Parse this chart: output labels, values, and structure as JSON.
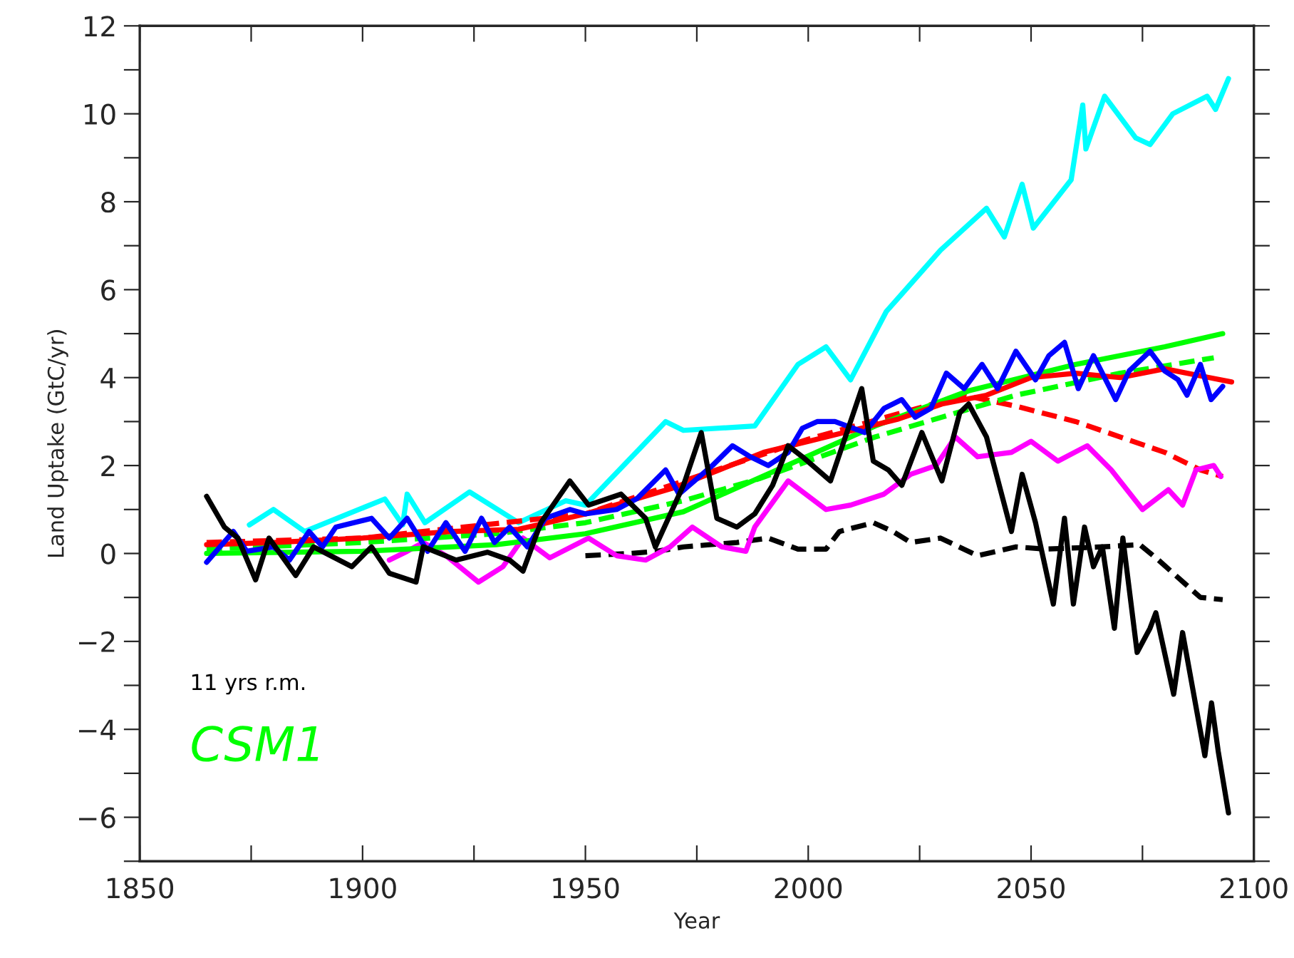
{
  "chart_data": {
    "type": "line",
    "xlabel": "Year",
    "ylabel": "Land Uptake (GtC/yr)",
    "annotations": [
      "11 yrs r.m.",
      "CSM1"
    ],
    "xlim": [
      1850,
      2100
    ],
    "xticks": [
      1850,
      {
        "value": 1875,
        "label": null
      },
      1900,
      {
        "value": 1925,
        "label": null
      },
      1950,
      {
        "value": 1975,
        "label": null
      },
      2000,
      {
        "value": 2025,
        "label": null
      },
      2050,
      {
        "value": 2075,
        "label": null
      },
      2100
    ],
    "ylim": [
      -7,
      12
    ],
    "yticks": [
      {
        "value": -7,
        "label": null
      },
      -6,
      {
        "value": -5,
        "label": null
      },
      -4,
      {
        "value": -3,
        "label": null
      },
      -2,
      {
        "value": -1,
        "label": null
      },
      0,
      {
        "value": 1,
        "label": null
      },
      2,
      {
        "value": 3,
        "label": null
      },
      4,
      {
        "value": 5,
        "label": null
      },
      6,
      {
        "value": 7,
        "label": null
      },
      8,
      {
        "value": 9,
        "label": null
      },
      10,
      {
        "value": 11,
        "label": null
      },
      12
    ],
    "grid": false,
    "legend": false,
    "series": [
      {
        "color": "#00ffff",
        "line_style": "solid",
        "x": [
          1874.6,
          1880,
          1887,
          1905,
          1909,
          1910,
          1914,
          1924,
          1935,
          1945.6,
          1950,
          1968,
          1972,
          1988,
          1997.7,
          2004,
          2009.5,
          2017.5,
          2029.7,
          2040,
          2044,
          2048,
          2050.5,
          2059,
          2061.6,
          2062.3,
          2066.5,
          2073.5,
          2076.7,
          2081.8,
          2089.5,
          2091.4,
          2094.3
        ],
        "values": [
          0.65,
          1.0,
          0.5,
          1.24,
          0.65,
          1.35,
          0.7,
          1.4,
          0.7,
          1.2,
          1.1,
          3.0,
          2.8,
          2.9,
          4.3,
          4.7,
          3.95,
          5.5,
          6.9,
          7.85,
          7.2,
          8.4,
          7.4,
          8.5,
          10.2,
          9.2,
          10.4,
          9.45,
          9.3,
          10.0,
          10.4,
          10.1,
          10.8
        ]
      },
      {
        "color": "#000000",
        "line_style": "dashed",
        "x": [
          1950,
          1960,
          1966,
          1972,
          1984,
          1991,
          1997.7,
          2004,
          2007,
          2014.6,
          2019,
          2023,
          2029.7,
          2038,
          2046.6,
          2053,
          2066,
          2074.4,
          2078.6,
          2083,
          2088,
          2093
        ],
        "values": [
          -0.05,
          0.0,
          0.05,
          0.15,
          0.25,
          0.35,
          0.1,
          0.1,
          0.5,
          0.7,
          0.5,
          0.25,
          0.35,
          -0.05,
          0.15,
          0.1,
          0.15,
          0.2,
          -0.15,
          -0.55,
          -1.0,
          -1.05
        ]
      },
      {
        "color": "#ff0000",
        "line_style": "dashed",
        "x": [
          1865,
          1900,
          1950,
          2000,
          2035,
          2046.6,
          2060,
          2080,
          2088,
          2093
        ],
        "values": [
          0.25,
          0.35,
          0.9,
          2.6,
          3.6,
          3.35,
          3.0,
          2.3,
          1.9,
          1.75
        ]
      },
      {
        "color": "#ff00ff",
        "line_style": "solid",
        "x": [
          1906,
          1910,
          1913.6,
          1918.7,
          1926,
          1931.5,
          1936,
          1942,
          1950.7,
          1957,
          1963.5,
          1969,
          1974,
          1980.6,
          1986,
          1988,
          1995.5,
          2004,
          2009.5,
          2017,
          2023,
          2028.7,
          2033,
          2038,
          2045.6,
          2050,
          2056,
          2062.6,
          2068,
          2075,
          2080.8,
          2084,
          2087,
          2091,
          2092.6
        ],
        "values": [
          -0.15,
          0.05,
          0.25,
          -0.05,
          -0.65,
          -0.3,
          0.35,
          -0.1,
          0.35,
          -0.05,
          -0.15,
          0.15,
          0.6,
          0.15,
          0.05,
          0.6,
          1.65,
          1.0,
          1.1,
          1.35,
          1.8,
          2.0,
          2.65,
          2.2,
          2.3,
          2.55,
          2.1,
          2.45,
          1.9,
          1.0,
          1.45,
          1.1,
          1.9,
          2.0,
          1.75
        ]
      },
      {
        "color": "#00ff00",
        "line_style": "solid",
        "x": [
          1865,
          1900,
          1930,
          1950,
          1972,
          1993,
          2015,
          2036,
          2060,
          2080,
          2093
        ],
        "values": [
          0.0,
          0.05,
          0.2,
          0.45,
          0.95,
          1.9,
          2.9,
          3.7,
          4.3,
          4.7,
          5.0
        ]
      },
      {
        "color": "#00ff00",
        "line_style": "dashed",
        "x": [
          1865,
          1900,
          1930,
          1950,
          1972,
          1989,
          2015,
          2046.6,
          2070,
          2091
        ],
        "values": [
          0.1,
          0.25,
          0.45,
          0.7,
          1.2,
          1.7,
          2.65,
          3.6,
          4.1,
          4.45
        ]
      },
      {
        "color": "#ff0000",
        "line_style": "solid",
        "x": [
          1865,
          1880,
          1900,
          1920,
          1935,
          1950,
          1960,
          1970,
          1980,
          1990,
          2000,
          2010,
          2020,
          2030,
          2040,
          2050,
          2060,
          2070,
          2080,
          2090,
          2095
        ],
        "values": [
          0.2,
          0.25,
          0.35,
          0.5,
          0.55,
          0.9,
          1.2,
          1.5,
          1.9,
          2.3,
          2.55,
          2.8,
          3.05,
          3.4,
          3.6,
          4.0,
          4.1,
          4.0,
          4.2,
          4.0,
          3.9
        ]
      },
      {
        "color": "#0000ff",
        "line_style": "solid",
        "x": [
          1865,
          1871,
          1874,
          1880,
          1883.6,
          1888,
          1891,
          1894,
          1902,
          1906,
          1910,
          1914.6,
          1918.7,
          1923,
          1926.7,
          1929.6,
          1933,
          1937,
          1941,
          1946.5,
          1950,
          1957,
          1961.6,
          1968,
          1971,
          1978.5,
          1983,
          1987,
          1991,
          1995.5,
          1998.7,
          2002,
          2006,
          2012.7,
          2017,
          2021,
          2024,
          2027.5,
          2031,
          2035,
          2039,
          2042.5,
          2046.6,
          2051,
          2054,
          2057.5,
          2060.6,
          2064,
          2069,
          2072,
          2076.7,
          2080,
          2083,
          2085,
          2088,
          2090.4,
          2093
        ],
        "values": [
          -0.2,
          0.5,
          0.05,
          0.15,
          -0.15,
          0.5,
          0.15,
          0.6,
          0.8,
          0.35,
          0.8,
          0.05,
          0.7,
          0.05,
          0.8,
          0.25,
          0.6,
          0.15,
          0.8,
          1.0,
          0.9,
          1.0,
          1.25,
          1.9,
          1.35,
          2.0,
          2.45,
          2.2,
          2.0,
          2.3,
          2.85,
          3.0,
          3.0,
          2.75,
          3.3,
          3.5,
          3.1,
          3.3,
          4.1,
          3.75,
          4.3,
          3.75,
          4.6,
          3.95,
          4.5,
          4.8,
          3.75,
          4.5,
          3.5,
          4.15,
          4.6,
          4.15,
          3.95,
          3.6,
          4.3,
          3.5,
          3.8
        ]
      },
      {
        "color": "#000000",
        "line_style": "solid",
        "x": [
          1865,
          1869,
          1872,
          1876,
          1879,
          1885,
          1889,
          1897.6,
          1902,
          1906,
          1912,
          1913.6,
          1921,
          1928,
          1933,
          1936,
          1940,
          1946.5,
          1950.7,
          1958,
          1963.5,
          1965.7,
          1972,
          1976,
          1979.5,
          1984,
          1988,
          1992,
          1995.5,
          1998.7,
          2005,
          2012,
          2014.6,
          2018,
          2021,
          2025.5,
          2030,
          2034,
          2036,
          2040,
          2045.6,
          2048,
          2051,
          2055,
          2057.5,
          2059.5,
          2062,
          2064,
          2066,
          2068.7,
          2070.6,
          2073.8,
          2076.7,
          2078,
          2082,
          2084,
          2089,
          2090.5,
          2092,
          2094.3
        ],
        "values": [
          1.3,
          0.6,
          0.35,
          -0.6,
          0.35,
          -0.5,
          0.15,
          -0.3,
          0.15,
          -0.45,
          -0.65,
          0.15,
          -0.15,
          0.03,
          -0.15,
          -0.4,
          0.7,
          1.65,
          1.1,
          1.35,
          0.8,
          0.15,
          1.55,
          2.75,
          0.8,
          0.6,
          0.9,
          1.55,
          2.45,
          2.2,
          1.65,
          3.75,
          2.1,
          1.9,
          1.55,
          2.75,
          1.65,
          3.2,
          3.4,
          2.65,
          0.5,
          1.8,
          0.7,
          -1.15,
          0.8,
          -1.15,
          0.6,
          -0.3,
          0.15,
          -1.7,
          0.35,
          -2.25,
          -1.7,
          -1.35,
          -3.2,
          -1.8,
          -4.6,
          -3.4,
          -4.5,
          -5.9
        ]
      }
    ]
  }
}
